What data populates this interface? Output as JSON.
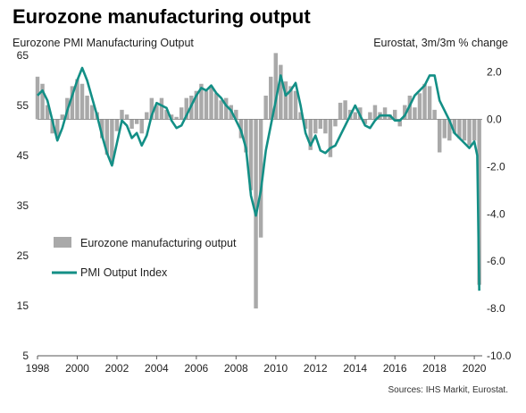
{
  "header": {
    "title": "Eurozone manufacturing output",
    "left_axis_title": "Eurozone PMI Manufacturing Output",
    "right_axis_title": "Eurostat, 3m/3m % change",
    "source": "Sources: IHS Markit, Eurostat."
  },
  "chart_data": {
    "type": "bar+line",
    "xlim": [
      1998,
      2020.4
    ],
    "x_ticks": [
      "1998",
      "2000",
      "2002",
      "2004",
      "2006",
      "2008",
      "2010",
      "2012",
      "2014",
      "2016",
      "2018",
      "2020"
    ],
    "left_axis": {
      "ylim": [
        5,
        65
      ],
      "ticks": [
        "65",
        "55",
        "45",
        "35",
        "25",
        "15",
        "5"
      ]
    },
    "right_axis": {
      "ylim": [
        -10,
        2.7
      ],
      "ticks": [
        "2.0",
        "0.0",
        "-2.0",
        "-4.0",
        "-6.0",
        "-8.0",
        "-10.0"
      ]
    },
    "grid": false,
    "legend_position": "lower-left",
    "series": [
      {
        "name": "Eurozone manufacturing output",
        "kind": "bar",
        "axis": "right",
        "color": "#a9a9a9",
        "points": [
          [
            1998.0,
            1.8
          ],
          [
            1998.25,
            1.5
          ],
          [
            1998.5,
            0.6
          ],
          [
            1998.75,
            -0.6
          ],
          [
            1999.0,
            -0.8
          ],
          [
            1999.25,
            0.2
          ],
          [
            1999.5,
            0.9
          ],
          [
            1999.75,
            1.4
          ],
          [
            2000.0,
            1.7
          ],
          [
            2000.25,
            1.5
          ],
          [
            2000.5,
            1.0
          ],
          [
            2000.75,
            0.6
          ],
          [
            2001.0,
            0.3
          ],
          [
            2001.25,
            -0.8
          ],
          [
            2001.5,
            -1.5
          ],
          [
            2001.75,
            -1.9
          ],
          [
            2002.0,
            -0.5
          ],
          [
            2002.25,
            0.4
          ],
          [
            2002.5,
            0.2
          ],
          [
            2002.75,
            -0.4
          ],
          [
            2003.0,
            -0.2
          ],
          [
            2003.25,
            -0.6
          ],
          [
            2003.5,
            0.3
          ],
          [
            2003.75,
            0.9
          ],
          [
            2004.0,
            0.6
          ],
          [
            2004.25,
            0.9
          ],
          [
            2004.5,
            0.4
          ],
          [
            2004.75,
            0.2
          ],
          [
            2005.0,
            0.1
          ],
          [
            2005.25,
            0.5
          ],
          [
            2005.5,
            0.9
          ],
          [
            2005.75,
            1.0
          ],
          [
            2006.0,
            1.2
          ],
          [
            2006.25,
            1.5
          ],
          [
            2006.5,
            1.2
          ],
          [
            2006.75,
            1.4
          ],
          [
            2007.0,
            1.1
          ],
          [
            2007.25,
            0.8
          ],
          [
            2007.5,
            0.9
          ],
          [
            2007.75,
            0.6
          ],
          [
            2008.0,
            0.4
          ],
          [
            2008.25,
            -0.8
          ],
          [
            2008.5,
            -1.4
          ],
          [
            2008.75,
            -3.0
          ],
          [
            2009.0,
            -8.0
          ],
          [
            2009.25,
            -5.0
          ],
          [
            2009.5,
            1.0
          ],
          [
            2009.75,
            1.8
          ],
          [
            2010.0,
            2.8
          ],
          [
            2010.25,
            2.3
          ],
          [
            2010.5,
            1.6
          ],
          [
            2010.75,
            1.4
          ],
          [
            2011.0,
            1.2
          ],
          [
            2011.25,
            0.3
          ],
          [
            2011.5,
            -0.4
          ],
          [
            2011.75,
            -1.3
          ],
          [
            2012.0,
            -0.6
          ],
          [
            2012.25,
            -0.4
          ],
          [
            2012.5,
            -0.6
          ],
          [
            2012.75,
            -1.6
          ],
          [
            2013.0,
            -0.3
          ],
          [
            2013.25,
            0.7
          ],
          [
            2013.5,
            0.8
          ],
          [
            2013.75,
            0.4
          ],
          [
            2014.0,
            0.3
          ],
          [
            2014.25,
            0.5
          ],
          [
            2014.5,
            -0.2
          ],
          [
            2014.75,
            0.3
          ],
          [
            2015.0,
            0.6
          ],
          [
            2015.25,
            0.3
          ],
          [
            2015.5,
            0.5
          ],
          [
            2015.75,
            0.2
          ],
          [
            2016.0,
            0.4
          ],
          [
            2016.25,
            -0.3
          ],
          [
            2016.5,
            0.6
          ],
          [
            2016.75,
            1.0
          ],
          [
            2017.0,
            0.5
          ],
          [
            2017.25,
            1.1
          ],
          [
            2017.5,
            1.5
          ],
          [
            2017.75,
            1.4
          ],
          [
            2018.0,
            0.4
          ],
          [
            2018.25,
            -1.4
          ],
          [
            2018.5,
            -0.8
          ],
          [
            2018.75,
            -0.9
          ],
          [
            2019.0,
            -0.6
          ],
          [
            2019.25,
            -0.8
          ],
          [
            2019.5,
            -0.9
          ],
          [
            2019.75,
            -1.1
          ],
          [
            2020.0,
            -0.9
          ],
          [
            2020.25,
            -7.0
          ]
        ]
      },
      {
        "name": "PMI Output Index",
        "kind": "line",
        "axis": "left",
        "color": "#138f86",
        "points": [
          [
            1998.0,
            57
          ],
          [
            1998.25,
            58
          ],
          [
            1998.5,
            56
          ],
          [
            1998.75,
            52
          ],
          [
            1999.0,
            48
          ],
          [
            1999.25,
            50.5
          ],
          [
            1999.5,
            54
          ],
          [
            1999.75,
            57
          ],
          [
            2000.0,
            60
          ],
          [
            2000.25,
            62.5
          ],
          [
            2000.5,
            60
          ],
          [
            2000.75,
            56.5
          ],
          [
            2001.0,
            53
          ],
          [
            2001.25,
            49
          ],
          [
            2001.5,
            45.5
          ],
          [
            2001.75,
            43
          ],
          [
            2002.0,
            47.5
          ],
          [
            2002.25,
            52
          ],
          [
            2002.5,
            51
          ],
          [
            2002.75,
            48.5
          ],
          [
            2003.0,
            49.5
          ],
          [
            2003.25,
            47
          ],
          [
            2003.5,
            49
          ],
          [
            2003.75,
            53
          ],
          [
            2004.0,
            55.5
          ],
          [
            2004.25,
            55
          ],
          [
            2004.5,
            54.5
          ],
          [
            2004.75,
            52
          ],
          [
            2005.0,
            50.5
          ],
          [
            2005.25,
            51
          ],
          [
            2005.5,
            53
          ],
          [
            2005.75,
            55
          ],
          [
            2006.0,
            57
          ],
          [
            2006.25,
            58.5
          ],
          [
            2006.5,
            58
          ],
          [
            2006.75,
            59
          ],
          [
            2007.0,
            57.5
          ],
          [
            2007.25,
            56.5
          ],
          [
            2007.5,
            55
          ],
          [
            2007.75,
            54
          ],
          [
            2008.0,
            52
          ],
          [
            2008.25,
            50
          ],
          [
            2008.5,
            46.5
          ],
          [
            2008.75,
            37
          ],
          [
            2009.0,
            33
          ],
          [
            2009.25,
            38
          ],
          [
            2009.5,
            46
          ],
          [
            2009.75,
            51
          ],
          [
            2010.0,
            56
          ],
          [
            2010.25,
            61
          ],
          [
            2010.5,
            57
          ],
          [
            2010.75,
            58
          ],
          [
            2011.0,
            59.5
          ],
          [
            2011.25,
            55
          ],
          [
            2011.5,
            49.5
          ],
          [
            2011.75,
            47
          ],
          [
            2012.0,
            49
          ],
          [
            2012.25,
            46
          ],
          [
            2012.5,
            45.5
          ],
          [
            2012.75,
            46.5
          ],
          [
            2013.0,
            47
          ],
          [
            2013.25,
            49
          ],
          [
            2013.5,
            51
          ],
          [
            2013.75,
            53
          ],
          [
            2014.0,
            55
          ],
          [
            2014.25,
            53
          ],
          [
            2014.5,
            51
          ],
          [
            2014.75,
            50.5
          ],
          [
            2015.0,
            52
          ],
          [
            2015.25,
            53
          ],
          [
            2015.5,
            53
          ],
          [
            2015.75,
            53
          ],
          [
            2016.0,
            52
          ],
          [
            2016.25,
            52
          ],
          [
            2016.5,
            53
          ],
          [
            2016.75,
            55
          ],
          [
            2017.0,
            57
          ],
          [
            2017.25,
            58
          ],
          [
            2017.5,
            59
          ],
          [
            2017.75,
            61
          ],
          [
            2018.0,
            61
          ],
          [
            2018.25,
            56
          ],
          [
            2018.5,
            54
          ],
          [
            2018.75,
            52
          ],
          [
            2019.0,
            49.5
          ],
          [
            2019.25,
            48.5
          ],
          [
            2019.5,
            47.5
          ],
          [
            2019.75,
            46.5
          ],
          [
            2020.0,
            47.8
          ],
          [
            2020.15,
            45
          ],
          [
            2020.25,
            18
          ]
        ]
      }
    ]
  }
}
